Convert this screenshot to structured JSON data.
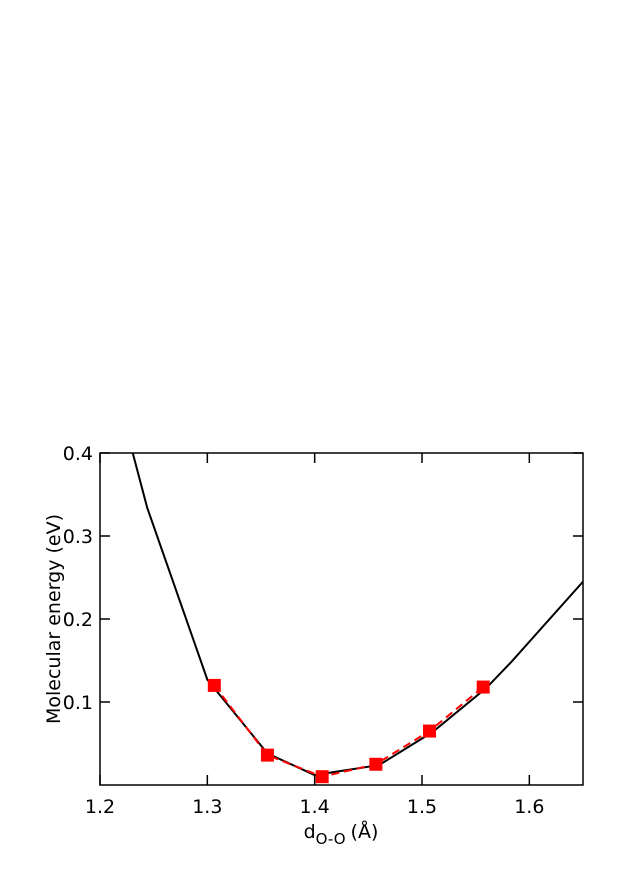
{
  "chart_data": {
    "type": "line",
    "y_label": "Molecular energy (eV)",
    "x_label": {
      "main": "d",
      "sub": "O-O",
      "unit": "(Å)"
    },
    "xlim": [
      1.2,
      1.65
    ],
    "xticks": [
      {
        "value": 1.2,
        "label": "1.2"
      },
      1.3,
      1.4,
      1.5,
      1.6
    ],
    "ylim": [
      0,
      0.4
    ],
    "yticks": [
      0.1,
      0.2,
      0.3,
      0.4
    ],
    "series": [
      {
        "color": "#000000",
        "style": "solid",
        "marker": "none",
        "x": [
          1.2305,
          1.244,
          1.3,
          1.356,
          1.4,
          1.46,
          1.51,
          1.56,
          1.583,
          1.65
        ],
        "values": [
          0.4,
          0.334,
          0.127,
          0.038,
          0.012,
          0.024,
          0.064,
          0.117,
          0.148,
          0.245
        ]
      },
      {
        "color": "#ff0000",
        "style": "dashed",
        "marker": "square",
        "x": [
          1.3065,
          1.356,
          1.407,
          1.457,
          1.507,
          1.557
        ],
        "values": [
          0.12,
          0.036,
          0.01,
          0.025,
          0.065,
          0.118
        ]
      }
    ]
  }
}
